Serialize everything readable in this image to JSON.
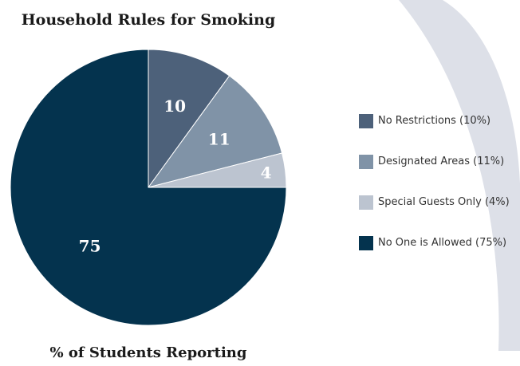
{
  "chart_data": {
    "type": "pie",
    "title": "Household Rules for Smoking",
    "xlabel": "% of Students Reporting",
    "categories": [
      "No Restrictions",
      "Designated Areas",
      "Special Guests Only",
      "No One is Allowed"
    ],
    "values": [
      10,
      11,
      4,
      75
    ],
    "data_labels": [
      "10",
      "11",
      "4",
      "75"
    ],
    "legend_labels": [
      "No Restrictions (10%)",
      "Designated Areas (11%)",
      "Special Guests Only (4%)",
      "No One is Allowed (75%)"
    ],
    "colors": [
      "#4d617a",
      "#8093a7",
      "#bcc4d0",
      "#04334e"
    ],
    "legend_position": "right"
  },
  "decoration": {
    "arc_color": "#dde0e8"
  }
}
